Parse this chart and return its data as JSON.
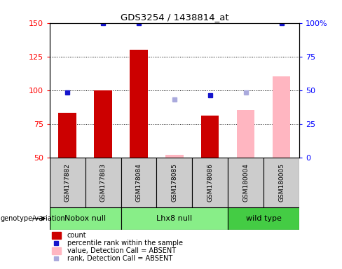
{
  "title": "GDS3254 / 1438814_at",
  "samples": [
    "GSM177882",
    "GSM177883",
    "GSM178084",
    "GSM178085",
    "GSM178086",
    "GSM180004",
    "GSM180005"
  ],
  "count_values": [
    83,
    100,
    130,
    null,
    81,
    null,
    null
  ],
  "count_absent_values": [
    null,
    null,
    null,
    52,
    null,
    85,
    110
  ],
  "percentile_rank": [
    48,
    100,
    100,
    null,
    46,
    null,
    100
  ],
  "percentile_rank_absent": [
    null,
    null,
    null,
    43,
    null,
    48,
    null
  ],
  "ylim_left": [
    50,
    150
  ],
  "ylim_right": [
    0,
    100
  ],
  "yticks_left": [
    50,
    75,
    100,
    125,
    150
  ],
  "yticks_right": [
    0,
    25,
    50,
    75,
    100
  ],
  "ytick_labels_right": [
    "0",
    "25",
    "50",
    "75",
    "100%"
  ],
  "bar_width": 0.5,
  "count_color": "#CC0000",
  "count_absent_color": "#FFB6C1",
  "rank_color": "#1515CC",
  "rank_absent_color": "#AAAADD",
  "sample_bg_color": "#CCCCCC",
  "group_configs": [
    {
      "name": "Nobox null",
      "start": 0,
      "end": 1,
      "color": "#88EE88"
    },
    {
      "name": "Lhx8 null",
      "start": 2,
      "end": 4,
      "color": "#88EE88"
    },
    {
      "name": "wild type",
      "start": 5,
      "end": 6,
      "color": "#44CC44"
    }
  ],
  "legend_items": [
    {
      "label": "count",
      "type": "bar",
      "color": "#CC0000"
    },
    {
      "label": "percentile rank within the sample",
      "type": "square",
      "color": "#1515CC"
    },
    {
      "label": "value, Detection Call = ABSENT",
      "type": "bar",
      "color": "#FFB6C1"
    },
    {
      "label": "rank, Detection Call = ABSENT",
      "type": "square",
      "color": "#AAAADD"
    }
  ]
}
